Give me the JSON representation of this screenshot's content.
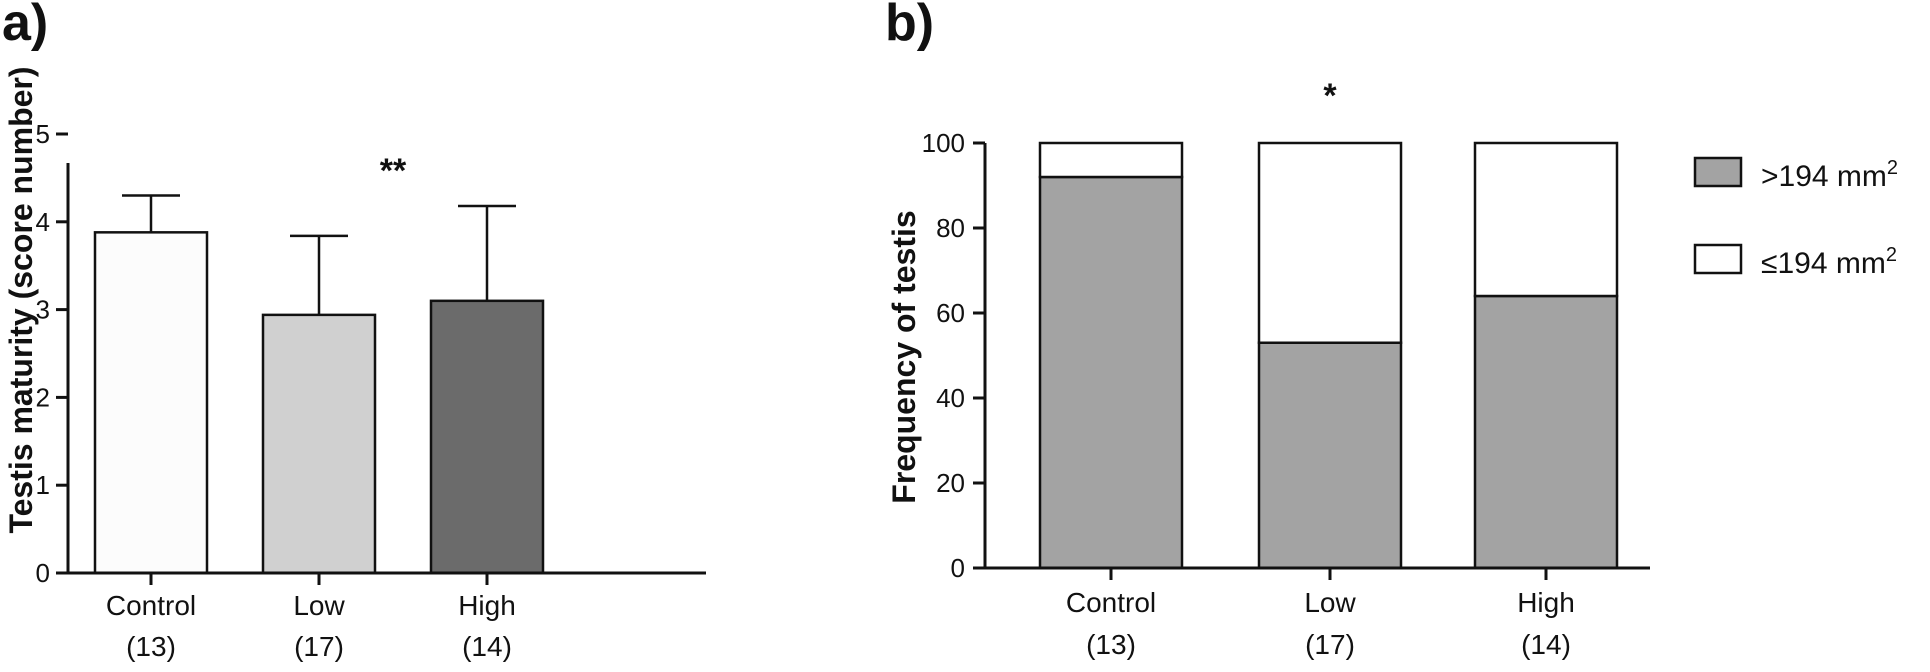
{
  "chart_data": [
    {
      "panel_label": "a)",
      "type": "bar",
      "ylabel": "Testis maturity (score number)",
      "ylim": [
        0,
        5
      ],
      "yticks": [
        "0",
        "1",
        "2",
        "3",
        "4",
        "5"
      ],
      "categories": [
        "Control",
        "Low",
        "High"
      ],
      "sample_sizes": [
        "(13)",
        "(17)",
        "(14)"
      ],
      "values": [
        3.88,
        2.94,
        3.1
      ],
      "error_upper": [
        0.42,
        0.9,
        1.08
      ],
      "bar_colors": [
        "#fcfcfc",
        "#d0d0d0",
        "#6b6b6b"
      ],
      "annotations": [
        "",
        "**",
        ""
      ],
      "grid": false
    },
    {
      "panel_label": "b)",
      "type": "bar",
      "stacked": true,
      "ylabel": "Frequency of testis",
      "ylim": [
        0,
        100
      ],
      "yticks": [
        "0",
        "20",
        "40",
        "60",
        "80",
        "100"
      ],
      "categories": [
        "Control",
        "Low",
        "High"
      ],
      "sample_sizes": [
        "(13)",
        "(17)",
        "(14)"
      ],
      "series": [
        {
          "name": ">194 mm²",
          "color": "#a3a3a3",
          "values": [
            92,
            53,
            64
          ]
        },
        {
          "name": "≤194 mm²",
          "color": "#ffffff",
          "values": [
            8,
            47,
            36
          ]
        }
      ],
      "annotations": [
        "",
        "*",
        ""
      ],
      "legend_placement": "right",
      "grid": false
    }
  ]
}
